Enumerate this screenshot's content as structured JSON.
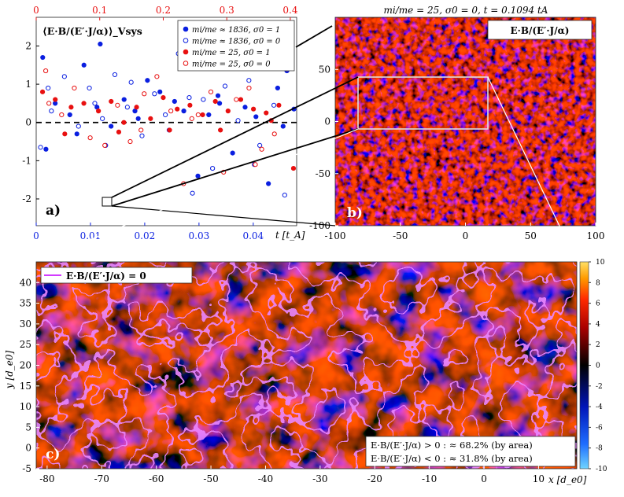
{
  "colors": {
    "blue": "#0a1fe0",
    "red": "#e81010",
    "magenta": "#d23cff",
    "background_dark": "#1a0303"
  },
  "chart_data": [
    {
      "panel": "a",
      "type": "scatter",
      "panel_label": "a)",
      "ylabel": "⟨E·B/(E′·J/α)⟩_Vsys",
      "xlabel_bottom": "t [t_A]",
      "x_bottom_lim": [
        0,
        0.048
      ],
      "x_bottom_ticks": [
        "0",
        "0.01",
        "0.02",
        "0.03",
        "0.04"
      ],
      "x_top_lim": [
        0,
        0.41
      ],
      "x_top_ticks": [
        "0",
        "0.1",
        "0.2",
        "0.3",
        "0.4"
      ],
      "ylim": [
        -2.7,
        2.75
      ],
      "y_ticks": [
        "-2",
        "-1",
        "0",
        "1",
        "2"
      ],
      "zero_line": true,
      "series": [
        {
          "name": "mi/me ≈ 1836, σ0 = 1",
          "color": "#0a1fe0",
          "filled": true,
          "axis": "bottom",
          "x": [
            0.0012,
            0.0035,
            0.0062,
            0.0088,
            0.0112,
            0.0118,
            0.0138,
            0.0162,
            0.0182,
            0.0205,
            0.0228,
            0.0255,
            0.0272,
            0.0298,
            0.0318,
            0.0338,
            0.0362,
            0.0385,
            0.0405,
            0.0428,
            0.0445,
            0.0462,
            0.0475,
            0.0018,
            0.0075,
            0.0128,
            0.0188,
            0.0245,
            0.0335,
            0.0455
          ],
          "y": [
            1.7,
            0.5,
            0.2,
            1.5,
            0.4,
            2.05,
            -0.1,
            0.6,
            0.3,
            1.1,
            0.8,
            0.55,
            0.3,
            -1.4,
            0.2,
            0.5,
            -0.8,
            0.4,
            0.15,
            -1.6,
            0.9,
            1.35,
            0.35,
            -0.7,
            -0.3,
            -0.6,
            0.1,
            -0.2,
            0.7,
            -0.1
          ]
        },
        {
          "name": "mi/me ≈ 1836, σ0 = 0",
          "color": "#0a1fe0",
          "filled": false,
          "axis": "bottom",
          "x": [
            0.0008,
            0.0028,
            0.0052,
            0.0078,
            0.0098,
            0.0122,
            0.0145,
            0.0168,
            0.0195,
            0.0218,
            0.0238,
            0.0262,
            0.0288,
            0.0308,
            0.0325,
            0.0348,
            0.0372,
            0.0392,
            0.0412,
            0.0438,
            0.0458,
            0.0022,
            0.0108,
            0.0175,
            0.0282,
            0.0402
          ],
          "y": [
            -0.65,
            0.3,
            1.2,
            -0.1,
            0.9,
            0.1,
            1.25,
            0.4,
            -0.35,
            0.75,
            0.2,
            1.8,
            -1.85,
            0.6,
            -1.2,
            0.95,
            0.05,
            1.1,
            -0.6,
            0.45,
            -1.9,
            0.9,
            0.5,
            1.05,
            0.65,
            -1.1
          ]
        },
        {
          "name": "mi/me = 25, σ0 = 1",
          "color": "#e81010",
          "filled": true,
          "axis": "top",
          "x": [
            0.01,
            0.03,
            0.055,
            0.075,
            0.098,
            0.118,
            0.138,
            0.158,
            0.18,
            0.2,
            0.222,
            0.242,
            0.262,
            0.282,
            0.302,
            0.322,
            0.342,
            0.362,
            0.382,
            0.405,
            0.045,
            0.13,
            0.21,
            0.29,
            0.37
          ],
          "y": [
            0.8,
            0.6,
            0.4,
            0.5,
            0.3,
            0.55,
            0.0,
            0.4,
            0.1,
            0.65,
            0.35,
            0.45,
            0.2,
            0.55,
            0.3,
            0.6,
            0.35,
            0.25,
            0.45,
            -1.2,
            -0.3,
            -0.25,
            -0.2,
            -0.2,
            0.05
          ]
        },
        {
          "name": "mi/me = 25, σ0 = 0",
          "color": "#e81010",
          "filled": false,
          "axis": "top",
          "x": [
            0.015,
            0.04,
            0.06,
            0.085,
            0.108,
            0.128,
            0.148,
            0.17,
            0.19,
            0.212,
            0.232,
            0.255,
            0.275,
            0.295,
            0.315,
            0.335,
            0.355,
            0.375,
            0.395,
            0.02,
            0.165,
            0.245,
            0.345
          ],
          "y": [
            1.35,
            0.2,
            0.9,
            -0.4,
            -0.6,
            0.45,
            -0.5,
            0.75,
            1.2,
            0.3,
            -1.6,
            0.2,
            0.8,
            -1.3,
            0.6,
            0.9,
            -0.7,
            -0.3,
            1.4,
            0.5,
            -0.2,
            0.1,
            -1.1
          ]
        }
      ],
      "legend": [
        {
          "label": "mi/me ≈ 1836, σ0 = 1",
          "color": "#0a1fe0",
          "filled": true
        },
        {
          "label": "mi/me ≈ 1836, σ0 = 0",
          "color": "#0a1fe0",
          "filled": false
        },
        {
          "label": "mi/me = 25, σ0 = 1",
          "color": "#e81010",
          "filled": true
        },
        {
          "label": "mi/me = 25, σ0 = 0",
          "color": "#e81010",
          "filled": false
        }
      ],
      "legend_position": "top-right"
    },
    {
      "panel": "b",
      "type": "heatmap",
      "title": "mi/me = 25, σ0 = 0, t = 0.1094 tA",
      "box_label": "E·B/(E′·J/α)",
      "panel_label": "b)",
      "xlim": [
        -100,
        100
      ],
      "x_ticks": [
        "-100",
        "-50",
        "0",
        "50",
        "100"
      ],
      "ylim": [
        -100,
        100
      ],
      "y_ticks": [
        "50",
        "0",
        "-50",
        "-100"
      ],
      "zoom_region_x": [
        -82,
        17
      ],
      "zoom_region_y": [
        -5,
        45
      ]
    },
    {
      "panel": "c",
      "type": "heatmap",
      "legend_label": "E·B/(E′·J/α) = 0",
      "panel_label": "c)",
      "xlabel": "x [d_e0]",
      "ylabel": "y [d_e0]",
      "xlim": [
        -82,
        17
      ],
      "x_ticks": [
        "-80",
        "-70",
        "-60",
        "-50",
        "-40",
        "-30",
        "-20",
        "-10",
        "0",
        "10"
      ],
      "ylim": [
        -5,
        45
      ],
      "y_ticks": [
        "40",
        "35",
        "30",
        "25",
        "20",
        "15",
        "10",
        "5",
        "0",
        "-5"
      ],
      "stats": [
        "E·B/(E′·J/α) > 0 : ≈ 68.2% (by area)",
        "E·B/(E′·J/α) < 0 : ≈ 31.8% (by area)"
      ],
      "colorbar": {
        "min": -10,
        "max": 10,
        "ticks": [
          "10",
          "8",
          "6",
          "4",
          "2",
          "0",
          "-2",
          "-4",
          "-6",
          "-8",
          "-10"
        ]
      }
    }
  ]
}
